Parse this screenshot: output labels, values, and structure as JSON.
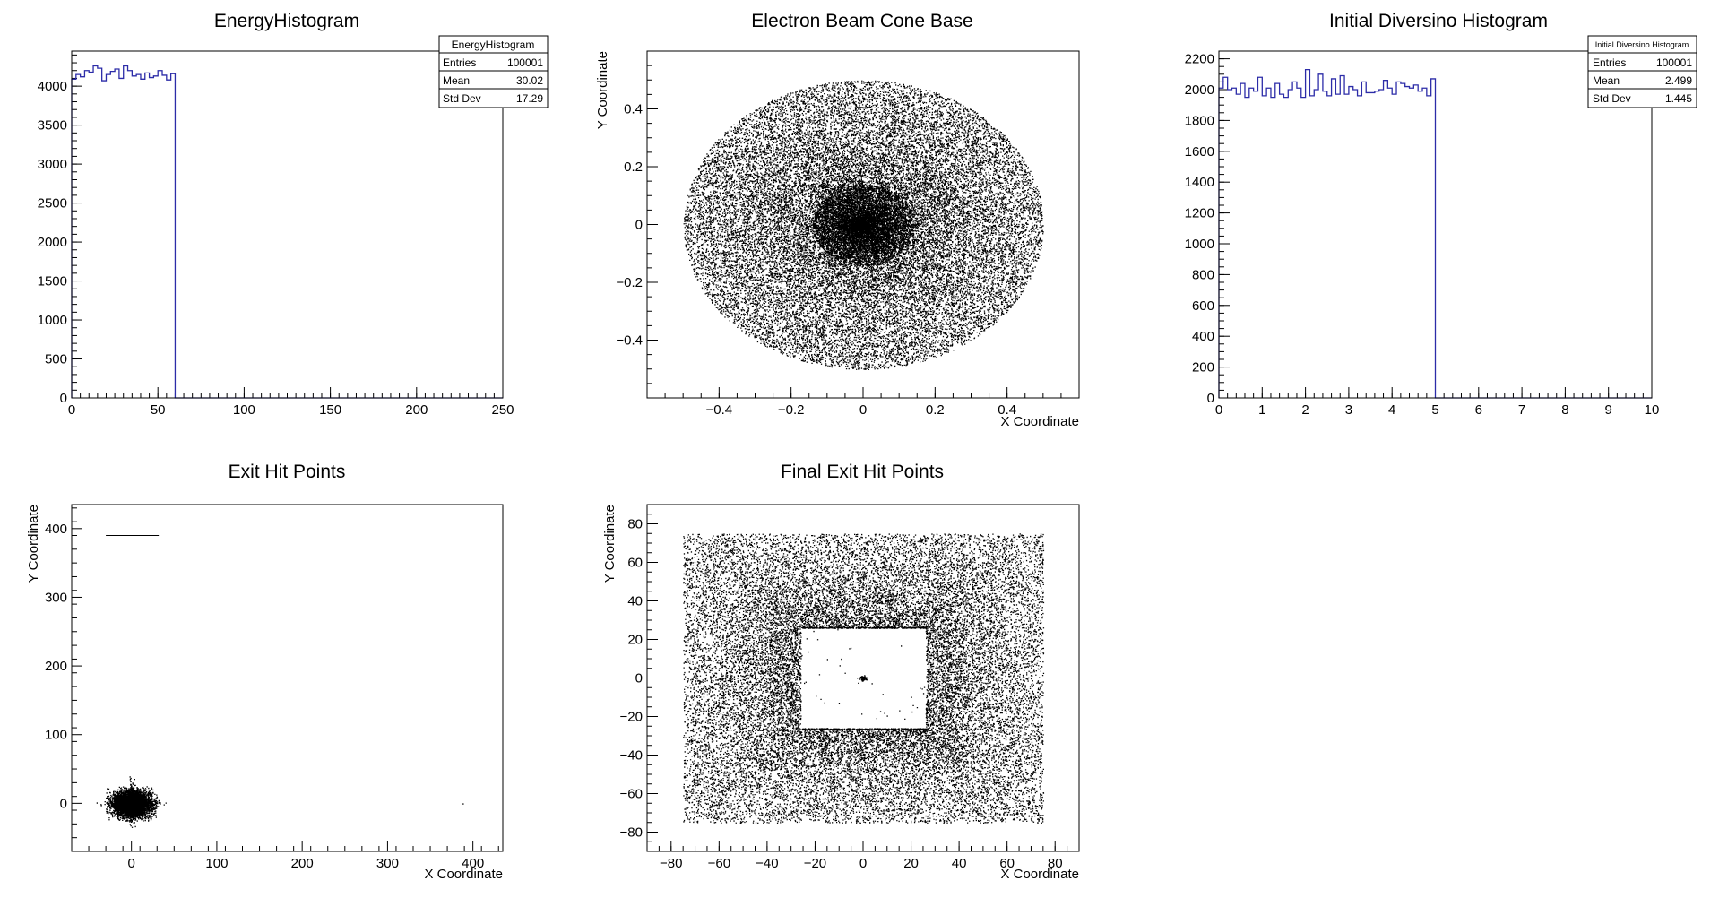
{
  "chart_data": [
    {
      "id": "energy",
      "type": "bar",
      "title": "EnergyHistogram",
      "xlabel": "",
      "ylabel": "",
      "xlim": [
        0,
        250
      ],
      "ylim": [
        0,
        4450
      ],
      "xticks": [
        0,
        50,
        100,
        150,
        200,
        250
      ],
      "yticks": [
        0,
        500,
        1000,
        1500,
        2000,
        2500,
        3000,
        3500,
        4000
      ],
      "bin_width": 2.5,
      "values": [
        4090,
        4150,
        4120,
        4200,
        4180,
        4260,
        4230,
        4070,
        4150,
        4190,
        4220,
        4100,
        4260,
        4200,
        4130,
        4150,
        4090,
        4170,
        4110,
        4130,
        4200,
        4140,
        4080,
        4160,
        0,
        0,
        0,
        0,
        0,
        0,
        0,
        0,
        0,
        0,
        0,
        0,
        0,
        0,
        0,
        0,
        0,
        0,
        0,
        0,
        0,
        0,
        0,
        0,
        0,
        0,
        0,
        0,
        0,
        0,
        0,
        0,
        0,
        0,
        0,
        0,
        0,
        0,
        0,
        0,
        0,
        0,
        0,
        0,
        0,
        0,
        0,
        0,
        0,
        0,
        0,
        0,
        0,
        0,
        0,
        0,
        0,
        0,
        0,
        0,
        0,
        0,
        0,
        0,
        0,
        0,
        0,
        0,
        0,
        0,
        0,
        0,
        0,
        0,
        0,
        0
      ],
      "stats": {
        "name": "EnergyHistogram",
        "entries_label": "Entries",
        "entries": "100001",
        "mean_label": "Mean",
        "mean": "30.02",
        "std_label": "Std Dev",
        "std": "17.29"
      },
      "color": "#2c2ca8"
    },
    {
      "id": "cone",
      "type": "scatter",
      "title": "Electron Beam Cone Base",
      "xlabel": "X Coordinate",
      "ylabel": "Y Coordinate",
      "xlim": [
        -0.6,
        0.6
      ],
      "ylim": [
        -0.6,
        0.6
      ],
      "xticks": [
        -0.4,
        -0.2,
        0,
        0.2,
        0.4
      ],
      "yticks": [
        -0.4,
        -0.2,
        0,
        0.2,
        0.4
      ],
      "xtick_labels": [
        "−0.4",
        "−0.2",
        "0",
        "0.2",
        "0.4"
      ],
      "ytick_labels": [
        "−0.4",
        "−0.2",
        "0",
        "0.2",
        "0.4"
      ],
      "distribution": {
        "shape": "disk",
        "center": [
          0,
          0
        ],
        "radius": 0.5,
        "points": 100001,
        "concentration": "peaked at center"
      },
      "color": "#000000"
    },
    {
      "id": "diversino",
      "type": "bar",
      "title": "Initial Diversino Histogram",
      "xlabel": "",
      "ylabel": "",
      "xlim": [
        0,
        10
      ],
      "ylim": [
        0,
        2250
      ],
      "xticks": [
        0,
        1,
        2,
        3,
        4,
        5,
        6,
        7,
        8,
        9,
        10
      ],
      "yticks": [
        0,
        200,
        400,
        600,
        800,
        1000,
        1200,
        1400,
        1600,
        1800,
        2000,
        2200
      ],
      "bin_width": 0.1,
      "values": [
        2010,
        2080,
        2000,
        2010,
        1970,
        2040,
        1950,
        2010,
        1990,
        2080,
        1960,
        2010,
        1950,
        2040,
        1970,
        1950,
        2000,
        2050,
        2010,
        1950,
        2130,
        1960,
        2000,
        2100,
        1990,
        1960,
        2070,
        1970,
        2090,
        1970,
        2020,
        2000,
        1960,
        2050,
        1980,
        1980,
        1990,
        2000,
        2060,
        2010,
        1970,
        2050,
        2040,
        2020,
        2010,
        2030,
        1990,
        2010,
        1960,
        2070,
        0,
        0,
        0,
        0,
        0,
        0,
        0,
        0,
        0,
        0,
        0,
        0,
        0,
        0,
        0,
        0,
        0,
        0,
        0,
        0,
        0,
        0,
        0,
        0,
        0,
        0,
        0,
        0,
        0,
        0,
        0,
        0,
        0,
        0,
        0,
        0,
        0,
        0,
        0,
        0,
        0,
        0,
        0,
        0,
        0,
        0,
        0,
        0,
        0,
        0
      ],
      "stats": {
        "name": "Initial Diversino Histogram",
        "entries_label": "Entries",
        "entries": "100001",
        "mean_label": "Mean",
        "mean": "2.499",
        "std_label": "Std Dev",
        "std": "1.445"
      },
      "color": "#2c2ca8"
    },
    {
      "id": "exit",
      "type": "scatter",
      "title": "Exit Hit Points",
      "xlabel": "X Coordinate",
      "ylabel": "Y Coordinate",
      "xlim": [
        -70,
        435
      ],
      "ylim": [
        -70,
        435
      ],
      "xticks": [
        0,
        100,
        200,
        300,
        400
      ],
      "yticks": [
        0,
        100,
        200,
        300,
        400
      ],
      "clusters": [
        {
          "center": [
            0,
            0
          ],
          "half_width_x": 30,
          "half_width_y": 25,
          "points": 6000
        }
      ],
      "segments": [
        {
          "x": [
            -30,
            32
          ],
          "y": [
            390,
            390
          ]
        }
      ],
      "outliers": [
        [
          388,
          0
        ]
      ],
      "color": "#000000"
    },
    {
      "id": "final",
      "type": "scatter",
      "title": "Final Exit Hit Points",
      "xlabel": "X Coordinate",
      "ylabel": "Y Coordinate",
      "xlim": [
        -90,
        90
      ],
      "ylim": [
        -90,
        90
      ],
      "xticks": [
        -80,
        -60,
        -40,
        -20,
        0,
        20,
        40,
        60,
        80
      ],
      "yticks": [
        -80,
        -60,
        -40,
        -20,
        0,
        20,
        40,
        60,
        80
      ],
      "xtick_labels": [
        "−80",
        "−60",
        "−40",
        "−20",
        "0",
        "20",
        "40",
        "60",
        "80"
      ],
      "ytick_labels": [
        "−80",
        "−60",
        "−40",
        "−20",
        "0",
        "20",
        "40",
        "60",
        "80"
      ],
      "distribution": {
        "outer_square_half": 75,
        "inner_empty_half": 26,
        "center_spot": [
          0,
          0
        ],
        "points": 26000
      },
      "color": "#000000"
    }
  ]
}
